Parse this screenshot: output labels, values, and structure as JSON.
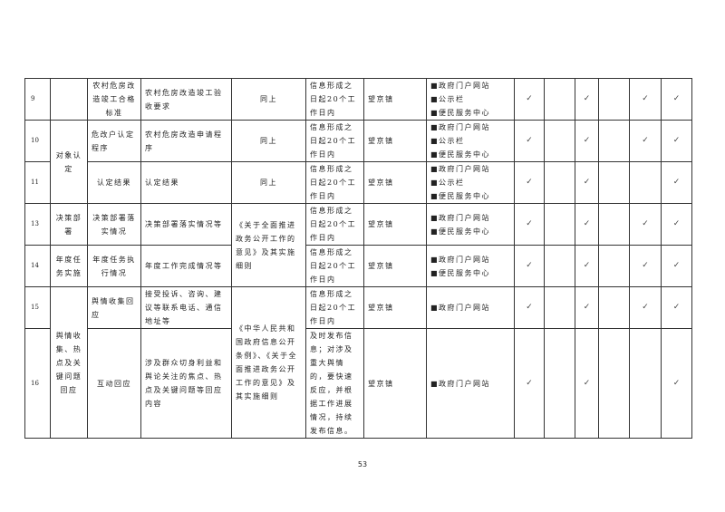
{
  "rows": [
    {
      "no": "9",
      "category": "",
      "item": "农村危房改造竣工合格标准",
      "content": "农村危房改造竣工验收要求",
      "basis": "同上",
      "time": "信息形成之日起20个工作日内",
      "subject": "望京镇",
      "channels": [
        "■政府门户网站",
        "■公示栏",
        "■便民服务中心"
      ],
      "checks": [
        "✓",
        "",
        "✓",
        "",
        "✓",
        "✓"
      ]
    },
    {
      "no": "10",
      "category": "对象认定",
      "item": "危改户认定程序",
      "content": "农村危房改造申请程序",
      "basis": "同上",
      "time": "信息形成之日起20个工作日内",
      "subject": "望京镇",
      "channels": [
        "■政府门户网站",
        "■公示栏",
        "■便民服务中心"
      ],
      "checks": [
        "✓",
        "",
        "✓",
        "",
        "✓",
        "✓"
      ]
    },
    {
      "no": "11",
      "category": "",
      "item": "认定结果",
      "content": "认定结果",
      "basis": "同上",
      "time": "信息形成之日起20个工作日内",
      "subject": "望京镇",
      "channels": [
        "■政府门户网站",
        "■公示栏",
        "■便民服务中心"
      ],
      "checks": [
        "✓",
        "",
        "✓",
        "",
        "",
        "✓"
      ]
    },
    {
      "no": "13",
      "category": "决策部署",
      "item": "决策部署落实情况",
      "content": "决策部署落实情况等",
      "basis": "《关于全面推进政务公开工作的意见》及其实施细则",
      "time": "信息形成之日起20个工作日内",
      "subject": "望京镇",
      "channels": [
        "■政府门户网站",
        "■便民服务中心"
      ],
      "checks": [
        "✓",
        "",
        "✓",
        "",
        "✓",
        "✓"
      ]
    },
    {
      "no": "14",
      "category": "年度任务实施",
      "item": "年度任务执行情况",
      "content": "年度工作完成情况等",
      "basis": "",
      "time": "信息形成之日起20个工作日内",
      "subject": "望京镇",
      "channels": [
        "■政府门户网站",
        "■便民服务中心"
      ],
      "checks": [
        "✓",
        "",
        "✓",
        "",
        "✓",
        "✓"
      ]
    },
    {
      "no": "15",
      "category": "舆情收集、热点及关键问题回应",
      "item": "舆情收集回应",
      "content": "接受投诉、咨询、建议等联系电话、通信地址等",
      "basis": "《中华人民共和国政府信息公开条例》、《关于全面推进政务公开工作的意见》及其实施细则",
      "time": "信息形成之日起20个工作日内",
      "subject": "望京镇",
      "channels": [
        "■政府门户网站"
      ],
      "checks": [
        "✓",
        "",
        "✓",
        "",
        "✓",
        "✓"
      ]
    },
    {
      "no": "16",
      "category": "",
      "item": "互动回应",
      "content": "涉及群众切身利益和舆论关注的焦点、热点及关键问题等回应内容",
      "basis": "",
      "time": "及时发布信息；对涉及重大舆情的，要快速反应，并根据工作进展情况，持续发布信息。",
      "subject": "望京镇",
      "channels": [
        "■政府门户网站"
      ],
      "checks": [
        "✓",
        "",
        "✓",
        "",
        "",
        "✓"
      ]
    }
  ],
  "page_number": "53"
}
